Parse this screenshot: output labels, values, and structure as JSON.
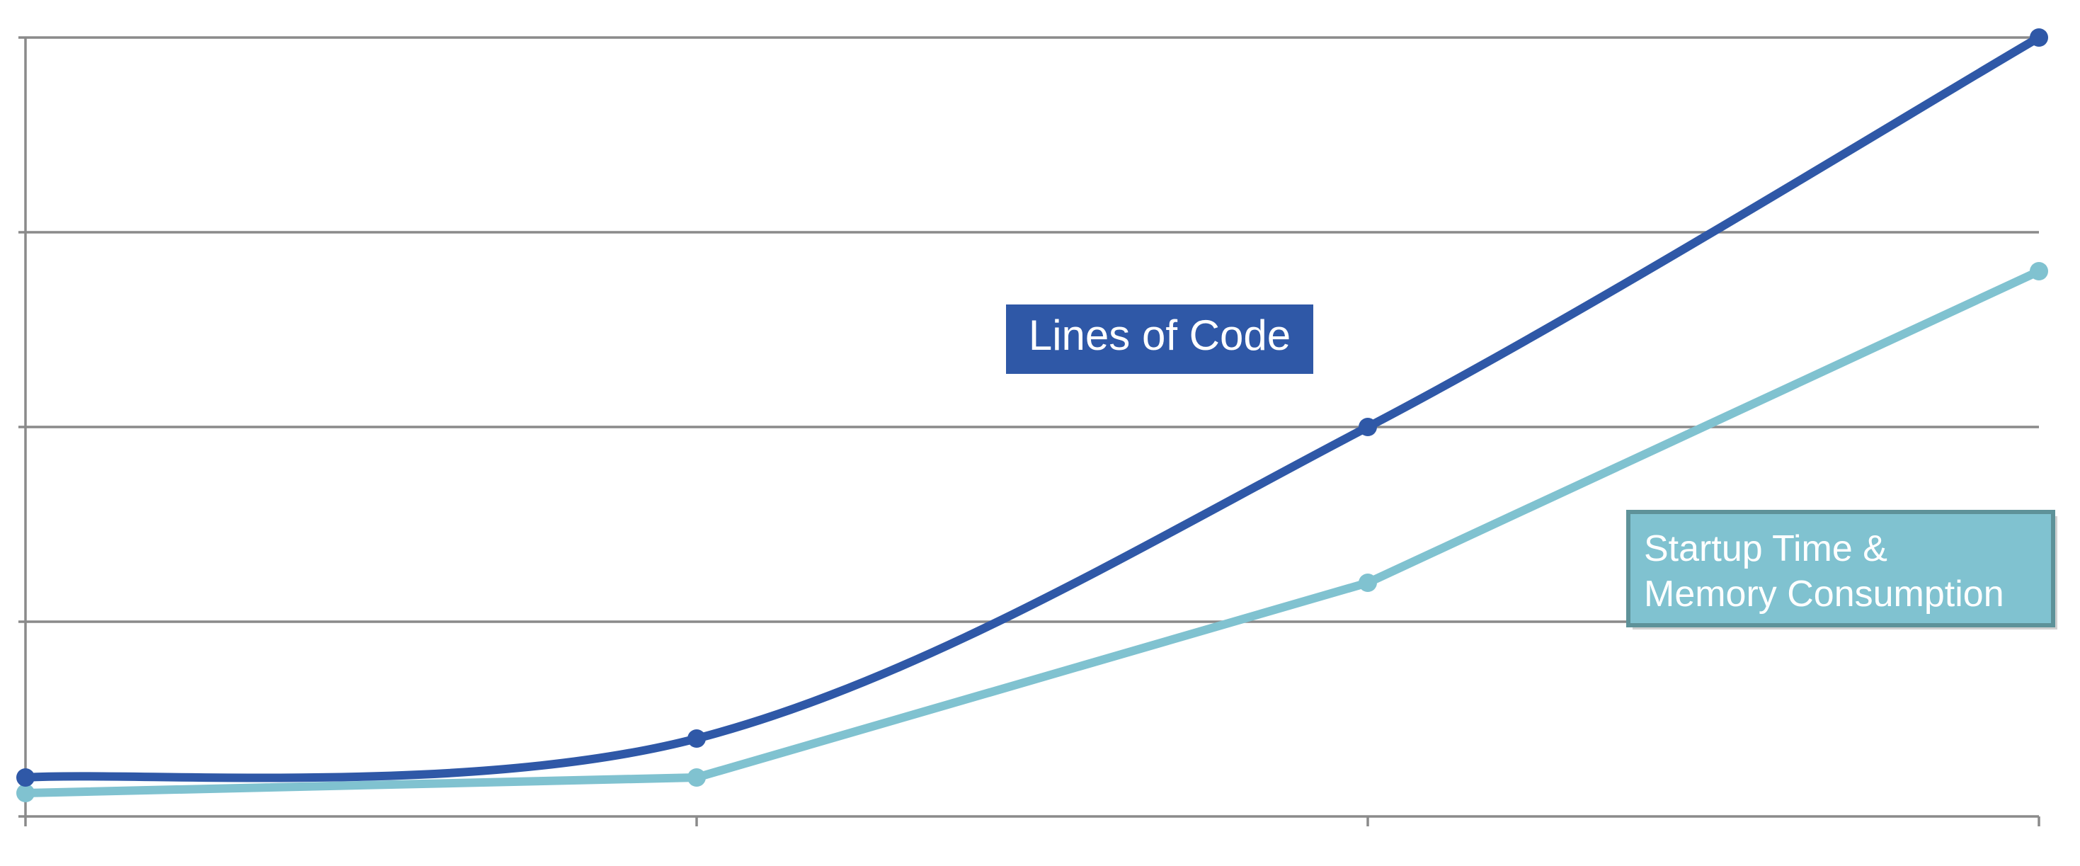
{
  "chart_data": {
    "type": "line",
    "title": "",
    "xlabel": "",
    "ylabel": "",
    "categories": [
      "",
      "",
      "",
      ""
    ],
    "ylim": [
      0,
      100
    ],
    "y_gridlines": [
      0,
      25,
      50,
      75,
      100
    ],
    "grid": true,
    "smooth_series": "Lines of Code",
    "series": [
      {
        "name": "Lines of Code",
        "color": "#2F58A7",
        "values": [
          5,
          10,
          50,
          100
        ]
      },
      {
        "name": "Startup Time & Memory Consumption",
        "color": "#80C2D0",
        "values": [
          3,
          5,
          30,
          70
        ]
      }
    ],
    "annotations": [
      {
        "series": "Lines of Code",
        "text": "Lines of Code",
        "background": "#2F58A7",
        "text_color": "#FFFFFF"
      },
      {
        "series": "Startup Time & Memory Consumption",
        "lines": [
          "Startup Time &",
          "Memory Consumption"
        ],
        "background": "#80C2D0",
        "border_color": "#5E9299",
        "text_color": "#FFFFFF"
      }
    ]
  }
}
